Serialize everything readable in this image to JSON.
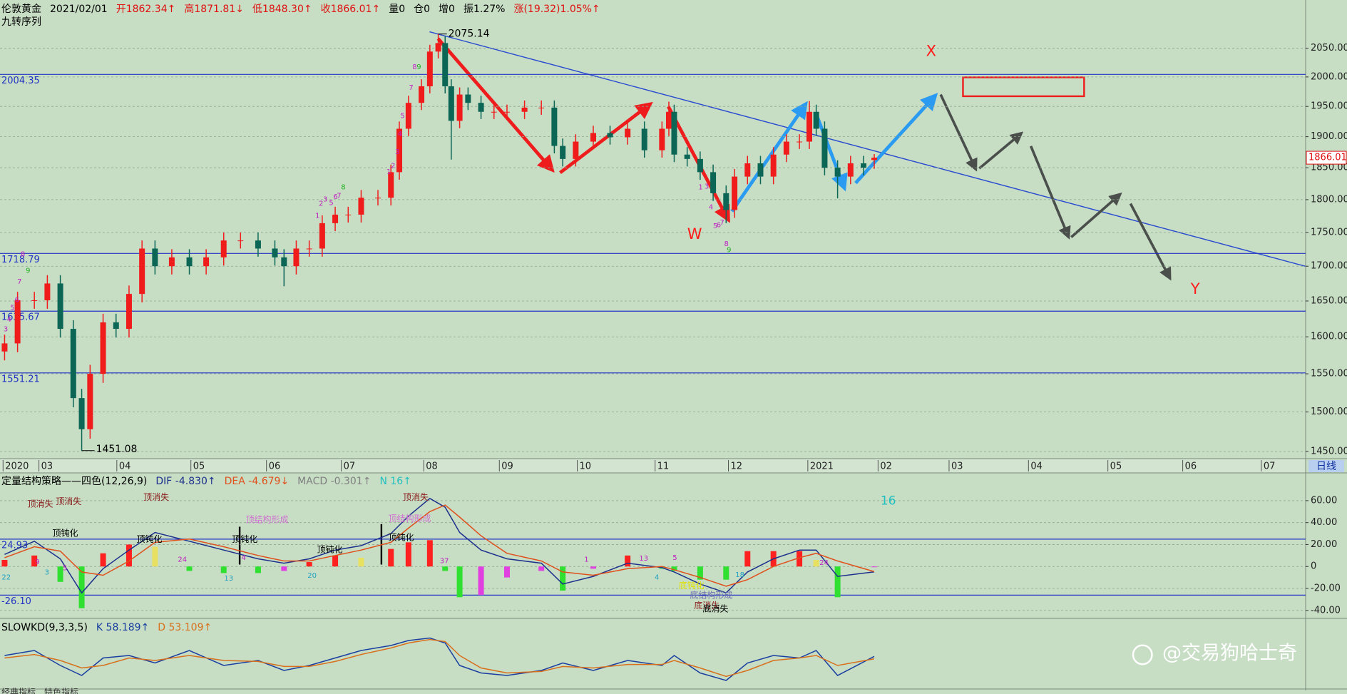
{
  "header": [
    "伦敦黄金",
    "2021/02/01",
    "开1862.34↑",
    "高1871.81↓",
    "低1848.30↑",
    "收1866.01↑",
    "量0",
    "仓0",
    "增0",
    "振1.27%",
    "涨(19.32)1.05%↑"
  ],
  "header_colors": [
    "#000000",
    "#000000",
    "#e01010",
    "#e01010",
    "#e01010",
    "#e01010",
    "#000000",
    "#000000",
    "#000000",
    "#000000",
    "#e01010"
  ],
  "period": "日线",
  "tabs": [
    "经典指标",
    "特色指标"
  ],
  "watermark": "@交易狗哈士奇",
  "chart_data": [
    {
      "type": "candlestick",
      "title": "九转序列",
      "log": true,
      "grid": true,
      "ylim": [
        1442,
        2090
      ],
      "yticks": [
        {
          "value": 1450,
          "label": "1450.00"
        },
        {
          "value": 1500,
          "label": "1500.00"
        },
        {
          "value": 1550,
          "label": "1550.00"
        },
        {
          "value": 1600,
          "label": "1600.00"
        },
        {
          "value": 1650,
          "label": "1650.00"
        },
        {
          "value": 1700,
          "label": "1700.00"
        },
        {
          "value": 1750,
          "label": "1750.00"
        },
        {
          "value": 1800,
          "label": "1800.00"
        },
        {
          "value": 1850,
          "label": "1850.00"
        },
        {
          "value": 1900,
          "label": "1900.00"
        },
        {
          "value": 1950,
          "label": "1950.00"
        },
        {
          "value": 2000,
          "label": "2000.00"
        },
        {
          "value": 2050,
          "label": "2050.00"
        }
      ],
      "xlim": [
        0.49,
        17.59
      ],
      "xticks": [
        {
          "value": 0.53,
          "label": "2020"
        },
        {
          "value": 1,
          "label": "03"
        },
        {
          "value": 2.02,
          "label": "04"
        },
        {
          "value": 2.99,
          "label": "05"
        },
        {
          "value": 3.98,
          "label": "06"
        },
        {
          "value": 4.96,
          "label": "07"
        },
        {
          "value": 6.04,
          "label": "08"
        },
        {
          "value": 7.03,
          "label": "09"
        },
        {
          "value": 8.05,
          "label": "10"
        },
        {
          "value": 9.07,
          "label": "11"
        },
        {
          "value": 10.03,
          "label": "12"
        },
        {
          "value": 11.07,
          "label": "2021"
        },
        {
          "value": 11.99,
          "label": "02"
        },
        {
          "value": 12.92,
          "label": "03"
        },
        {
          "value": 13.96,
          "label": "04"
        },
        {
          "value": 15.0,
          "label": "05"
        },
        {
          "value": 15.98,
          "label": "06"
        },
        {
          "value": 17.01,
          "label": "07"
        }
      ],
      "x": [
        0.55,
        0.72,
        0.94,
        1.11,
        1.28,
        1.45,
        1.56,
        1.67,
        1.84,
        2.01,
        2.18,
        2.35,
        2.52,
        2.74,
        2.97,
        3.19,
        3.42,
        3.64,
        3.87,
        4.09,
        4.21,
        4.37,
        4.54,
        4.71,
        4.88,
        5.05,
        5.22,
        5.44,
        5.61,
        5.72,
        5.84,
        6.01,
        6.12,
        6.23,
        6.32,
        6.4,
        6.51,
        6.62,
        6.79,
        6.96,
        7.13,
        7.36,
        7.58,
        7.75,
        7.86,
        8.03,
        8.26,
        8.48,
        8.71,
        8.93,
        9.16,
        9.25,
        9.32,
        9.49,
        9.66,
        9.83,
        10.0,
        10.11,
        10.28,
        10.45,
        10.62,
        10.79,
        10.96,
        11.09,
        11.18,
        11.29,
        11.46,
        11.63,
        11.8,
        11.94
      ],
      "open": [
        1580,
        1591,
        1651,
        1651,
        1675,
        1611,
        1518,
        1478,
        1550,
        1620,
        1611,
        1660,
        1726,
        1700,
        1713,
        1700,
        1713,
        1738,
        1738,
        1726,
        1713,
        1700,
        1726,
        1726,
        1764,
        1777,
        1777,
        1803,
        1803,
        1843,
        1913,
        1956,
        1984,
        2044,
        2059,
        1984,
        1926,
        1970,
        1956,
        1941,
        1941,
        1941,
        1948,
        1948,
        1885,
        1864,
        1892,
        1906,
        1899,
        1913,
        1878,
        1913,
        1941,
        1871,
        1864,
        1843,
        1810,
        1784,
        1836,
        1857,
        1836,
        1871,
        1892,
        1892,
        1941,
        1913,
        1850,
        1836,
        1857,
        1862.34
      ],
      "high": [
        1603,
        1663,
        1663,
        1687,
        1687,
        1623,
        1530,
        1562,
        1632,
        1632,
        1672,
        1738,
        1738,
        1725,
        1725,
        1725,
        1750,
        1750,
        1750,
        1738,
        1725,
        1738,
        1738,
        1776,
        1789,
        1789,
        1815,
        1815,
        1855,
        1925,
        1968,
        1996,
        2056,
        2075.14,
        2071,
        1996,
        1982,
        1982,
        1968,
        1953,
        1953,
        1960,
        1960,
        1960,
        1897,
        1904,
        1918,
        1918,
        1925,
        1925,
        1925,
        1958,
        1953,
        1883,
        1876,
        1855,
        1822,
        1848,
        1869,
        1869,
        1883,
        1904,
        1904,
        1959,
        1953,
        1925,
        1862,
        1869,
        1869,
        1871.81
      ],
      "low": [
        1568,
        1579,
        1639,
        1639,
        1599,
        1506,
        1451.08,
        1466,
        1538,
        1599,
        1599,
        1648,
        1688,
        1688,
        1688,
        1688,
        1701,
        1726,
        1714,
        1701,
        1671,
        1688,
        1714,
        1714,
        1752,
        1765,
        1765,
        1791,
        1791,
        1831,
        1901,
        1944,
        1972,
        2032,
        1972,
        1863,
        1914,
        1944,
        1929,
        1929,
        1929,
        1929,
        1936,
        1873,
        1852,
        1852,
        1880,
        1887,
        1887,
        1866,
        1866,
        1901,
        1859,
        1852,
        1831,
        1798,
        1764,
        1772,
        1824,
        1824,
        1824,
        1859,
        1880,
        1880,
        1901,
        1838,
        1802,
        1824,
        1838,
        1848.3
      ],
      "close": [
        1591,
        1651,
        1651,
        1675,
        1611,
        1518,
        1478,
        1550,
        1620,
        1611,
        1660,
        1726,
        1700,
        1713,
        1700,
        1713,
        1738,
        1738,
        1726,
        1713,
        1700,
        1726,
        1726,
        1764,
        1777,
        1777,
        1803,
        1803,
        1843,
        1913,
        1956,
        1984,
        2044,
        2059,
        1984,
        1926,
        1970,
        1956,
        1941,
        1941,
        1941,
        1948,
        1948,
        1885,
        1864,
        1892,
        1906,
        1899,
        1913,
        1878,
        1913,
        1941,
        1871,
        1864,
        1843,
        1810,
        1784,
        1836,
        1857,
        1836,
        1871,
        1892,
        1892,
        1941,
        1913,
        1850,
        1836,
        1857,
        1850,
        1866.01
      ],
      "up_color": "#f01c1c",
      "down_color": "#0b6656",
      "hlines": [
        2004.35,
        1718.79,
        1635.67,
        1551.21
      ],
      "hline_color": "#2233c4",
      "annotations": [
        "X",
        "W",
        "Y"
      ],
      "annotation_color": "#ff1a1a",
      "td_labels": [
        "3",
        "4",
        "5",
        "6",
        "7",
        "8",
        "9",
        "1",
        "2",
        "3",
        "5",
        "6",
        "7",
        "8",
        "1",
        "2",
        "3",
        "4",
        "5",
        "7",
        "8",
        "9",
        "1",
        "3",
        "4",
        "5",
        "6",
        "7",
        "8",
        "9"
      ],
      "td_color": "#c020c0",
      "td_nine_color": "#20b020"
    },
    {
      "type": "macd",
      "title": "定量结构策略——四色(12,26,9)",
      "grid": true,
      "ylim": [
        -46,
        84
      ],
      "yticks": [
        {
          "value": 60,
          "label": "60.00"
        },
        {
          "value": 40,
          "label": "40.00"
        },
        {
          "value": 20,
          "label": "20.00"
        },
        0,
        {
          "value": -20,
          "label": "-20.00"
        },
        {
          "value": -40,
          "label": "-40.00"
        }
      ],
      "xlim": [
        0.49,
        17.59
      ],
      "x": [
        0.55,
        0.94,
        1.28,
        1.56,
        1.84,
        2.18,
        2.52,
        2.97,
        3.42,
        3.87,
        4.21,
        4.54,
        4.88,
        5.22,
        5.61,
        5.84,
        6.12,
        6.32,
        6.51,
        6.79,
        7.13,
        7.58,
        7.86,
        8.26,
        8.71,
        9.16,
        9.32,
        9.66,
        10.0,
        10.28,
        10.62,
        10.96,
        11.18,
        11.46,
        11.94
      ],
      "series": [
        {
          "name": "DIF -4.830↑",
          "color": "#1c2f8c",
          "values": [
            11,
            23,
            7,
            -24,
            -2,
            15,
            31,
            23,
            15,
            7,
            3,
            7,
            15,
            19,
            30,
            46,
            62,
            54,
            31,
            15,
            7,
            3,
            -16,
            -9,
            3,
            -1,
            -5,
            -16,
            -24,
            -5,
            7,
            15,
            15,
            -9,
            -4.83
          ]
        },
        {
          "name": "DEA -4.679↓",
          "color": "#e0501c",
          "values": [
            8,
            18,
            14,
            -5,
            -8,
            5,
            22,
            25,
            18,
            10,
            5,
            5,
            10,
            15,
            22,
            35,
            50,
            56,
            45,
            28,
            12,
            5,
            -5,
            -8,
            -2,
            0,
            -3,
            -10,
            -18,
            -12,
            0,
            8,
            12,
            5,
            -4.679
          ]
        }
      ],
      "histogram": {
        "name": "MACD -0.301↑",
        "color": "#808080",
        "colors": [
          "#ff2020",
          "#e8e060",
          "#30e030",
          "#e040e0"
        ],
        "values": [
          6,
          10,
          -14,
          -38,
          12,
          20,
          18,
          -4,
          -6,
          -6,
          -4,
          4,
          10,
          8,
          16,
          22,
          24,
          -4,
          -28,
          -26,
          -10,
          -4,
          -22,
          -2,
          10,
          -2,
          -4,
          -12,
          -12,
          14,
          14,
          14,
          6,
          -28,
          -0.301
        ]
      },
      "notes": [
        "N 16↑"
      ],
      "note_color": "#20c0c0",
      "hlines": [
        24.93,
        {
          "value": -26.1,
          "label": "-26.10"
        }
      ],
      "hline_color": "#2233c4",
      "annotations": [
        "顶消失",
        "顶消失",
        "顶消失",
        "顶消失",
        "顶钝化",
        "顶钝化",
        "顶钝化",
        "顶钝化",
        "顶钝化",
        "顶结构形成",
        "顶结构形成",
        "底钝化",
        "底结构形成",
        "底消失",
        "底消失",
        "16",
        "22",
        "9",
        "3",
        "5",
        "24",
        "13",
        "4",
        "20",
        "37",
        "1",
        "13",
        "5",
        "4",
        "18",
        "24"
      ]
    },
    {
      "type": "line",
      "title": "SLOWKD(9,3,3,5)",
      "ylim": [
        0,
        100
      ],
      "xlim": [
        0.49,
        17.59
      ],
      "x": [
        0.55,
        0.94,
        1.28,
        1.56,
        1.84,
        2.18,
        2.52,
        2.97,
        3.42,
        3.87,
        4.21,
        4.54,
        4.88,
        5.22,
        5.61,
        5.84,
        6.12,
        6.32,
        6.51,
        6.79,
        7.13,
        7.58,
        7.86,
        8.26,
        8.71,
        9.16,
        9.32,
        9.66,
        10.0,
        10.28,
        10.62,
        10.96,
        11.18,
        11.46,
        11.94
      ],
      "series": [
        {
          "name": "K 58.189↑",
          "color": "#1a3ea0",
          "values": [
            60,
            70,
            40,
            20,
            55,
            60,
            45,
            70,
            40,
            50,
            30,
            40,
            55,
            70,
            80,
            90,
            95,
            85,
            40,
            25,
            20,
            30,
            45,
            30,
            50,
            40,
            60,
            25,
            10,
            45,
            60,
            55,
            70,
            20,
            58.189
          ]
        },
        {
          "name": "D 53.109↑",
          "color": "#d8701c",
          "values": [
            55,
            62,
            50,
            35,
            40,
            55,
            50,
            60,
            50,
            48,
            38,
            38,
            48,
            62,
            75,
            85,
            92,
            88,
            60,
            35,
            25,
            28,
            38,
            35,
            42,
            42,
            50,
            35,
            18,
            30,
            50,
            55,
            60,
            40,
            53.109
          ]
        }
      ]
    }
  ]
}
